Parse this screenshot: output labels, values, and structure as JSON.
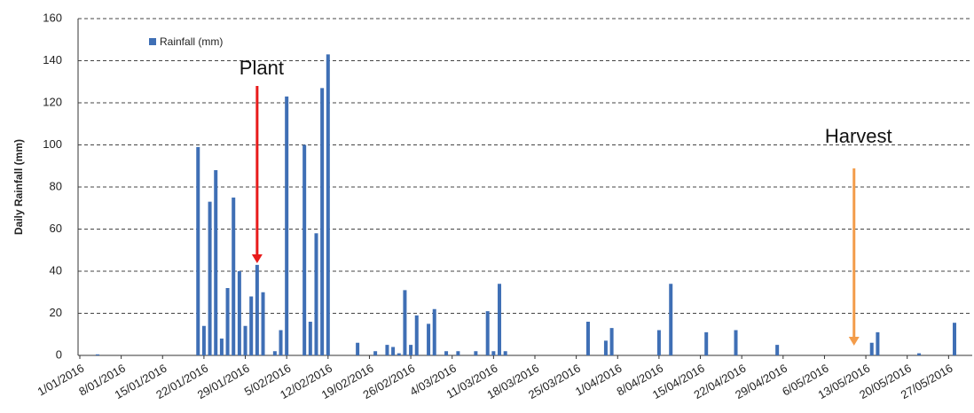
{
  "chart_data": {
    "type": "bar",
    "y_axis_label": "Daily Rainfall (mm)",
    "series": [
      {
        "name": "Rainfall (mm)",
        "color": "#3f6fb5",
        "x": [
          "4/01/2016",
          "21/01/2016",
          "22/01/2016",
          "23/01/2016",
          "24/01/2016",
          "25/01/2016",
          "26/01/2016",
          "27/01/2016",
          "28/01/2016",
          "29/01/2016",
          "30/01/2016",
          "31/01/2016",
          "1/02/2016",
          "3/02/2016",
          "4/02/2016",
          "5/02/2016",
          "8/02/2016",
          "9/02/2016",
          "10/02/2016",
          "11/02/2016",
          "12/02/2016",
          "17/02/2016",
          "20/02/2016",
          "22/02/2016",
          "23/02/2016",
          "24/02/2016",
          "25/02/2016",
          "26/02/2016",
          "27/02/2016",
          "29/02/2016",
          "1/03/2016",
          "3/03/2016",
          "5/03/2016",
          "8/03/2016",
          "10/03/2016",
          "11/03/2016",
          "12/03/2016",
          "13/03/2016",
          "27/03/2016",
          "30/03/2016",
          "31/03/2016",
          "8/04/2016",
          "10/04/2016",
          "16/04/2016",
          "21/04/2016",
          "28/04/2016",
          "14/05/2016",
          "15/05/2016",
          "22/05/2016",
          "28/05/2016"
        ],
        "values": [
          0.5,
          99,
          14,
          73,
          88,
          8,
          32,
          75,
          40,
          14,
          28,
          43,
          30,
          2,
          12,
          123,
          100,
          16,
          58,
          127,
          143,
          6,
          2,
          5,
          4,
          1,
          31,
          5,
          19,
          15,
          22,
          2,
          2,
          2,
          21,
          2,
          34,
          2,
          16,
          7,
          13,
          12,
          34,
          11,
          12,
          5,
          6,
          11,
          1,
          15.5
        ]
      }
    ],
    "xlim": [
      "1/01/2016",
      "31/05/2016"
    ],
    "xticks": [
      "1/01/2016",
      "8/01/2016",
      "15/01/2016",
      "22/01/2016",
      "29/01/2016",
      "5/02/2016",
      "12/02/2016",
      "19/02/2016",
      "26/02/2016",
      "4/03/2016",
      "11/03/2016",
      "18/03/2016",
      "25/03/2016",
      "1/04/2016",
      "8/04/2016",
      "15/04/2016",
      "22/04/2016",
      "29/04/2016",
      "6/05/2016",
      "13/05/2016",
      "20/05/2016",
      "27/05/2016"
    ],
    "ylim": [
      0,
      160
    ],
    "yticks": [
      0,
      20,
      40,
      60,
      80,
      100,
      120,
      140,
      160
    ],
    "grid": true,
    "legend": "upper left",
    "annotations": [
      {
        "text": "Plant",
        "date": "31/01/2016",
        "color": "#e81a1a"
      },
      {
        "text": "Harvest",
        "date": "11/05/2016",
        "color": "#f39c4a"
      }
    ]
  }
}
